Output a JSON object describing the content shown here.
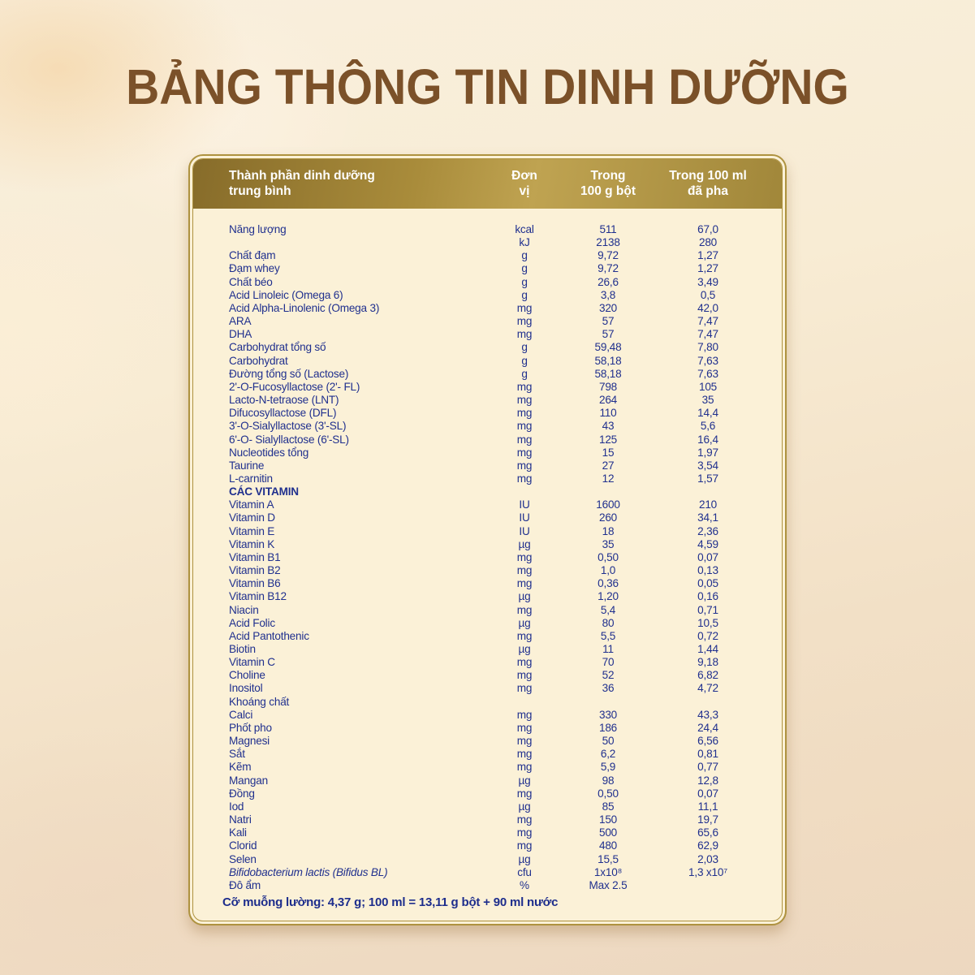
{
  "title": "BẢNG THÔNG TIN DINH DƯỠNG",
  "colors": {
    "title_brown": "#7b5129",
    "text_navy": "#20308e",
    "gold_border": "#ae923f",
    "card_cream": "#fbf1d7",
    "band_gold_dark": "#876c2a",
    "band_gold_light": "#bfa351"
  },
  "table": {
    "header": {
      "component_line1": "Thành phần dinh dưỡng",
      "component_line2": "trung bình",
      "unit_line1": "Đơn",
      "unit_line2": "vị",
      "per100g_line1": "Trong",
      "per100g_line2": "100 g bột",
      "per100ml_line1": "Trong 100 ml",
      "per100ml_line2": "đã pha"
    },
    "rows": [
      {
        "name": "Năng lượng",
        "unit": "kcal",
        "per100g": "511",
        "per100ml": "67,0"
      },
      {
        "name": "",
        "unit": "kJ",
        "per100g": "2138",
        "per100ml": "280"
      },
      {
        "name": "Chất đạm",
        "unit": "g",
        "per100g": "9,72",
        "per100ml": "1,27"
      },
      {
        "name": "Đạm whey",
        "unit": "g",
        "per100g": "9,72",
        "per100ml": "1,27"
      },
      {
        "name": "Chất béo",
        "unit": "g",
        "per100g": "26,6",
        "per100ml": "3,49"
      },
      {
        "name": "Acid Linoleic (Omega 6)",
        "unit": "g",
        "per100g": "3,8",
        "per100ml": "0,5"
      },
      {
        "name": "Acid Alpha-Linolenic (Omega 3)",
        "unit": "mg",
        "per100g": "320",
        "per100ml": "42,0"
      },
      {
        "name": "ARA",
        "unit": "mg",
        "per100g": "57",
        "per100ml": "7,47"
      },
      {
        "name": "DHA",
        "unit": "mg",
        "per100g": "57",
        "per100ml": "7,47"
      },
      {
        "name": "Carbohydrat tổng số",
        "unit": "g",
        "per100g": "59,48",
        "per100ml": "7,80"
      },
      {
        "name": "Carbohydrat",
        "unit": "g",
        "per100g": "58,18",
        "per100ml": "7,63"
      },
      {
        "name": "Đường tổng số (Lactose)",
        "unit": "g",
        "per100g": "58,18",
        "per100ml": "7,63"
      },
      {
        "name": "2'-O-Fucosyllactose (2'- FL)",
        "unit": "mg",
        "per100g": "798",
        "per100ml": "105"
      },
      {
        "name": "Lacto-N-tetraose (LNT)",
        "unit": "mg",
        "per100g": "264",
        "per100ml": "35"
      },
      {
        "name": "Difucosyllactose (DFL)",
        "unit": "mg",
        "per100g": "110",
        "per100ml": "14,4"
      },
      {
        "name": "3'-O-Sialyllactose (3'-SL)",
        "unit": "mg",
        "per100g": "43",
        "per100ml": "5,6"
      },
      {
        "name": "6'-O- Sialyllactose (6'-SL)",
        "unit": "mg",
        "per100g": "125",
        "per100ml": "16,4"
      },
      {
        "name": "Nucleotides tổng",
        "unit": "mg",
        "per100g": "15",
        "per100ml": "1,97"
      },
      {
        "name": "Taurine",
        "unit": "mg",
        "per100g": "27",
        "per100ml": "3,54"
      },
      {
        "name": "L-carnitin",
        "unit": "mg",
        "per100g": "12",
        "per100ml": "1,57"
      },
      {
        "name": "CÁC VITAMIN",
        "unit": "",
        "per100g": "",
        "per100ml": "",
        "style": "bold"
      },
      {
        "name": "Vitamin A",
        "unit": "IU",
        "per100g": "1600",
        "per100ml": "210"
      },
      {
        "name": "Vitamin D",
        "unit": "IU",
        "per100g": "260",
        "per100ml": "34,1"
      },
      {
        "name": "Vitamin E",
        "unit": "IU",
        "per100g": "18",
        "per100ml": "2,36"
      },
      {
        "name": "Vitamin K",
        "unit": "µg",
        "per100g": "35",
        "per100ml": "4,59"
      },
      {
        "name": "Vitamin B1",
        "unit": "mg",
        "per100g": "0,50",
        "per100ml": "0,07"
      },
      {
        "name": "Vitamin B2",
        "unit": "mg",
        "per100g": "1,0",
        "per100ml": "0,13"
      },
      {
        "name": "Vitamin B6",
        "unit": "mg",
        "per100g": "0,36",
        "per100ml": "0,05"
      },
      {
        "name": "Vitamin B12",
        "unit": "µg",
        "per100g": "1,20",
        "per100ml": "0,16"
      },
      {
        "name": "Niacin",
        "unit": "mg",
        "per100g": "5,4",
        "per100ml": "0,71"
      },
      {
        "name": "Acid Folic",
        "unit": "µg",
        "per100g": "80",
        "per100ml": "10,5"
      },
      {
        "name": "Acid Pantothenic",
        "unit": "mg",
        "per100g": "5,5",
        "per100ml": "0,72"
      },
      {
        "name": "Biotin",
        "unit": "µg",
        "per100g": "11",
        "per100ml": "1,44"
      },
      {
        "name": "Vitamin C",
        "unit": "mg",
        "per100g": "70",
        "per100ml": "9,18"
      },
      {
        "name": "Choline",
        "unit": "mg",
        "per100g": "52",
        "per100ml": "6,82"
      },
      {
        "name": "Inositol",
        "unit": "mg",
        "per100g": "36",
        "per100ml": "4,72"
      },
      {
        "name": "Khoáng chất",
        "unit": "",
        "per100g": "",
        "per100ml": ""
      },
      {
        "name": "Calci",
        "unit": "mg",
        "per100g": "330",
        "per100ml": "43,3"
      },
      {
        "name": "Phốt pho",
        "unit": "mg",
        "per100g": "186",
        "per100ml": "24,4"
      },
      {
        "name": "Magnesi",
        "unit": "mg",
        "per100g": "50",
        "per100ml": "6,56"
      },
      {
        "name": "Sắt",
        "unit": "mg",
        "per100g": "6,2",
        "per100ml": "0,81"
      },
      {
        "name": "Kẽm",
        "unit": "mg",
        "per100g": "5,9",
        "per100ml": "0,77"
      },
      {
        "name": "Mangan",
        "unit": "µg",
        "per100g": "98",
        "per100ml": "12,8"
      },
      {
        "name": "Đồng",
        "unit": "mg",
        "per100g": "0,50",
        "per100ml": "0,07"
      },
      {
        "name": "Iod",
        "unit": "µg",
        "per100g": "85",
        "per100ml": "11,1"
      },
      {
        "name": "Natri",
        "unit": "mg",
        "per100g": "150",
        "per100ml": "19,7"
      },
      {
        "name": "Kali",
        "unit": "mg",
        "per100g": "500",
        "per100ml": "65,6"
      },
      {
        "name": "Clorid",
        "unit": "mg",
        "per100g": "480",
        "per100ml": "62,9"
      },
      {
        "name": "Selen",
        "unit": "µg",
        "per100g": "15,5",
        "per100ml": "2,03"
      },
      {
        "name": "Bifidobacterium lactis (Bifidus BL)",
        "unit": "cfu",
        "per100g": "1x10⁸",
        "per100ml": "1,3 x10⁷",
        "style": "italic"
      },
      {
        "name": "Độ ẩm",
        "unit": "%",
        "per100g": "Max 2,5",
        "per100ml": ""
      }
    ],
    "footnote": "Cỡ muỗng lường: 4,37 g; 100 ml = 13,11 g bột + 90 ml nước"
  }
}
